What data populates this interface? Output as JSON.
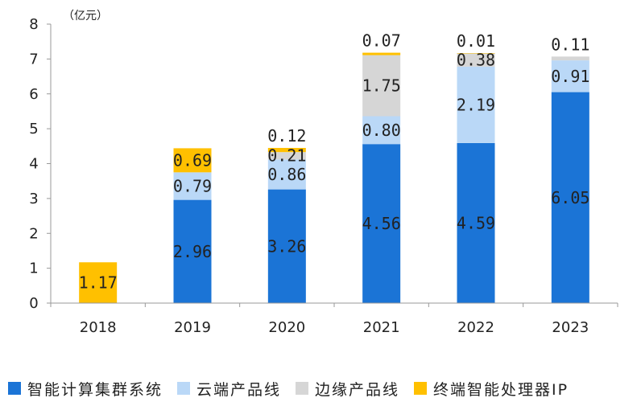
{
  "chart_data": {
    "type": "stacked-bar",
    "unit_label": "（亿元）",
    "categories": [
      "2018",
      "2019",
      "2020",
      "2021",
      "2022",
      "2023"
    ],
    "ylim": [
      0,
      8
    ],
    "yticks": [
      "0",
      "1",
      "2",
      "3",
      "4",
      "5",
      "6",
      "7",
      "8"
    ],
    "series": [
      {
        "name": "智能计算集群系统",
        "color": "#1b74d6",
        "values": [
          0,
          2.96,
          3.26,
          4.56,
          4.59,
          6.05
        ],
        "labels": [
          "",
          "2.96",
          "3.26",
          "4.56",
          "4.59",
          "6.05"
        ]
      },
      {
        "name": "云端产品线",
        "color": "#bad8f7",
        "values": [
          0,
          0.79,
          0.86,
          0.8,
          2.19,
          0.91
        ],
        "labels": [
          "",
          "0.79",
          "0.86",
          "0.80",
          "2.19",
          "0.91"
        ]
      },
      {
        "name": "边缘产品线",
        "color": "#d6d6d6",
        "values": [
          0,
          0,
          0.21,
          1.75,
          0.38,
          0.11
        ],
        "labels": [
          "",
          "",
          "0.21",
          "1.75",
          "0.38",
          "0.11"
        ]
      },
      {
        "name": "终端智能处理器IP",
        "color": "#ffc000",
        "values": [
          1.17,
          0.69,
          0.12,
          0.07,
          0.01,
          0
        ],
        "labels": [
          "1.17",
          "0.69",
          "0.12",
          "0.07",
          "0.01",
          ""
        ]
      }
    ]
  }
}
